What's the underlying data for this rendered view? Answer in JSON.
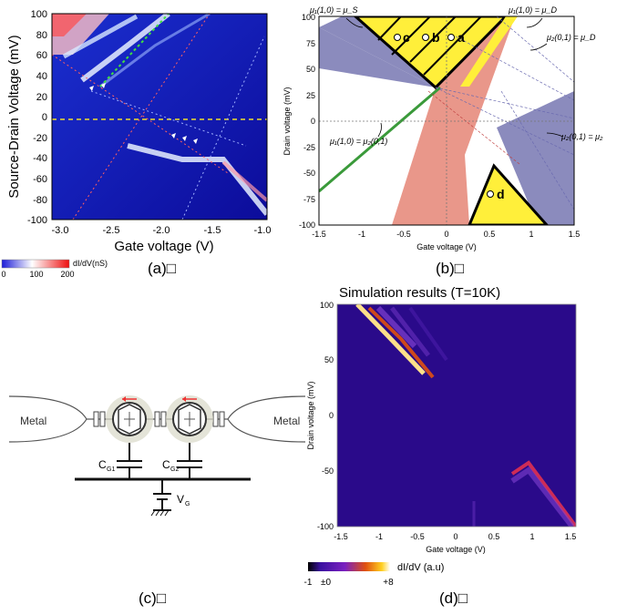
{
  "panel_a": {
    "caption": "(a)□",
    "ylabel": "Source-Drain Voltage (mV)",
    "xlabel": "Gate voltage (V)",
    "xticks": [
      "-3.0",
      "-2.5",
      "-2.0",
      "-1.5",
      "-1.0"
    ],
    "yticks": [
      "100",
      "80",
      "60",
      "40",
      "20",
      "0",
      "-20",
      "-40",
      "-60",
      "-80",
      "-100"
    ],
    "colorbar_label": "dI/dV(nS)",
    "colorbar_ticks": [
      "0",
      "100",
      "200"
    ]
  },
  "panel_b": {
    "caption": "(b)□",
    "ylabel": "Drain voltage (mV)",
    "xlabel": "Gate voltage (V)",
    "xticks": [
      "-1.5",
      "-1",
      "-0.5",
      "0",
      "0.5",
      "1",
      "1.5"
    ],
    "yticks": [
      "100",
      "75",
      "50",
      "25",
      "0",
      "-25",
      "-50",
      "-75",
      "-100"
    ],
    "ann_mu1_s": "μ₁(1,0) = μ_S",
    "ann_mu1_d": "μ₁(1,0) = μ_D",
    "ann_mu2_d": "μ₂(0,1) = μ_D",
    "ann_mu2_d2": "μ₂(0,1) = μ₂",
    "ann_mu1_mu2": "μ₁(1,0) = μ₂(0,1)",
    "point_labels": [
      "c",
      "b",
      "a",
      "d"
    ]
  },
  "panel_c": {
    "caption": "(c)□",
    "metal_left": "Metal",
    "metal_right": "Metal",
    "cg1": "C",
    "cg1_sub": "G1",
    "cg2": "C",
    "cg2_sub": "G2",
    "vg": "V",
    "vg_sub": "G"
  },
  "panel_d": {
    "caption": "(d)□",
    "title": "Simulation results (T=10K)",
    "ylabel": "Drain voltage (mV)",
    "xlabel": "Gate voltage (V)",
    "xticks": [
      "-1.5",
      "-1",
      "-0.5",
      "0",
      "0.5",
      "1",
      "1.5"
    ],
    "yticks": [
      "100",
      "50",
      "0",
      "-50",
      "-100"
    ],
    "colorbar_label": "dI/dV (a.u)",
    "colorbar_ticks": [
      "-1",
      "±0",
      "+8"
    ]
  },
  "colors": {
    "blue_dark": "#0a0a8c",
    "periwinkle": "#8b8bbd",
    "salmon": "#e9978a",
    "yellow": "#ffef3a",
    "green": "#3a9a3a",
    "sim_bg": "#2a0a8a"
  }
}
